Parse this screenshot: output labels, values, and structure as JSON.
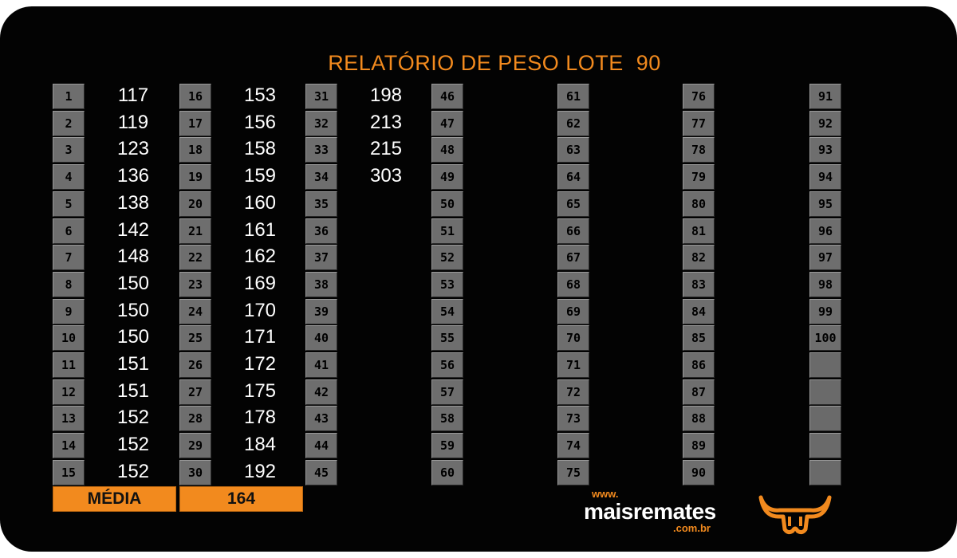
{
  "report": {
    "title": "RELATÓRIO DE PESO LOTE  90",
    "columns": [
      {
        "indices": [
          "1",
          "2",
          "3",
          "4",
          "5",
          "6",
          "7",
          "8",
          "9",
          "10",
          "11",
          "12",
          "13",
          "14",
          "15"
        ],
        "values": [
          "117",
          "119",
          "123",
          "136",
          "138",
          "142",
          "148",
          "150",
          "150",
          "150",
          "151",
          "151",
          "152",
          "152",
          "152"
        ]
      },
      {
        "indices": [
          "16",
          "17",
          "18",
          "19",
          "20",
          "21",
          "22",
          "23",
          "24",
          "25",
          "26",
          "27",
          "28",
          "29",
          "30"
        ],
        "values": [
          "153",
          "156",
          "158",
          "159",
          "160",
          "161",
          "162",
          "169",
          "170",
          "171",
          "172",
          "175",
          "178",
          "184",
          "192"
        ]
      },
      {
        "indices": [
          "31",
          "32",
          "33",
          "34",
          "35",
          "36",
          "37",
          "38",
          "39",
          "40",
          "41",
          "42",
          "43",
          "44",
          "45"
        ],
        "values": [
          "198",
          "213",
          "215",
          "303",
          "",
          "",
          "",
          "",
          "",
          "",
          "",
          "",
          "",
          "",
          ""
        ]
      },
      {
        "indices": [
          "46",
          "47",
          "48",
          "49",
          "50",
          "51",
          "52",
          "53",
          "54",
          "55",
          "56",
          "57",
          "58",
          "59",
          "60"
        ],
        "values": [
          "",
          "",
          "",
          "",
          "",
          "",
          "",
          "",
          "",
          "",
          "",
          "",
          "",
          "",
          ""
        ]
      },
      {
        "indices": [
          "61",
          "62",
          "63",
          "64",
          "65",
          "66",
          "67",
          "68",
          "69",
          "70",
          "71",
          "72",
          "73",
          "74",
          "75"
        ],
        "values": [
          "",
          "",
          "",
          "",
          "",
          "",
          "",
          "",
          "",
          "",
          "",
          "",
          "",
          "",
          ""
        ]
      },
      {
        "indices": [
          "76",
          "77",
          "78",
          "79",
          "80",
          "81",
          "82",
          "83",
          "84",
          "85",
          "86",
          "87",
          "88",
          "89",
          "90"
        ],
        "values": [
          "",
          "",
          "",
          "",
          "",
          "",
          "",
          "",
          "",
          "",
          "",
          "",
          "",
          "",
          ""
        ]
      },
      {
        "indices": [
          "91",
          "92",
          "93",
          "94",
          "95",
          "96",
          "97",
          "98",
          "99",
          "100",
          "",
          "",
          "",
          "",
          ""
        ],
        "values": [
          "",
          "",
          "",
          "",
          "",
          "",
          "",
          "",
          "",
          "",
          "",
          "",
          "",
          "",
          ""
        ]
      }
    ],
    "average_label": "MÉDIA",
    "average_value": "164"
  },
  "branding": {
    "www": "www.",
    "name": "maisremates",
    "domain": ".com.br",
    "logo_icon": "bull-head-icon",
    "accent_color": "#f28a1e"
  }
}
